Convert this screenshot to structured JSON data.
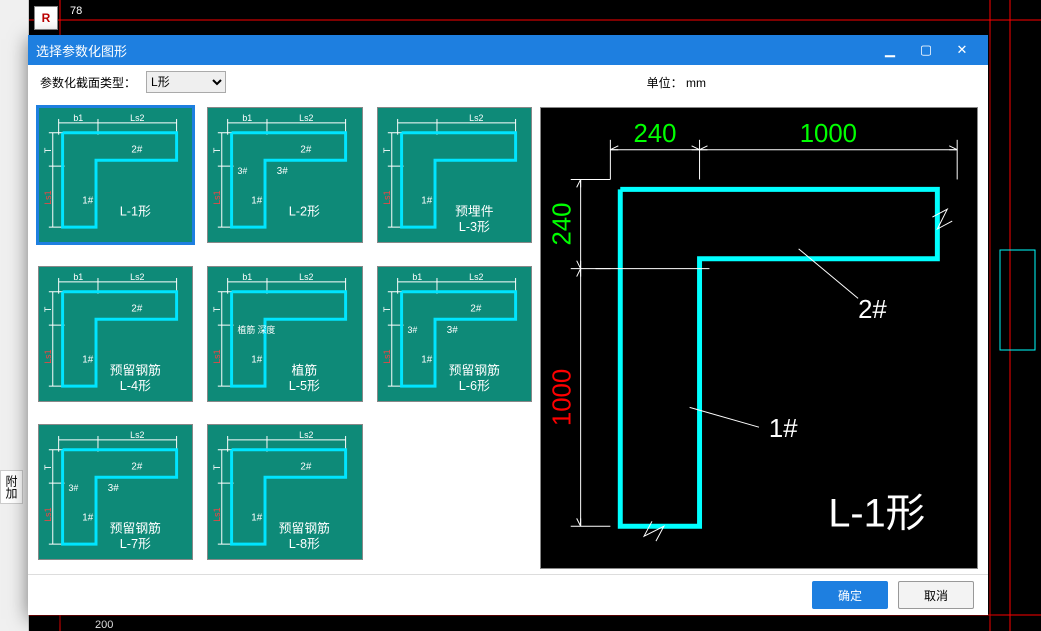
{
  "window": {
    "title": "选择参数化图形",
    "minimize_glyph": "▁",
    "maximize_glyph": "▢",
    "close_glyph": "✕"
  },
  "toolbar": {
    "type_label": "参数化截面类型：",
    "type_value": "L形",
    "unit_label": "单位：",
    "unit_value": "mm"
  },
  "thumbs": {
    "style": {
      "bg": "#0e8a78",
      "outline_cyan": "#00e5ff",
      "text": "#ffffff",
      "red": "#ff4040"
    },
    "items": [
      {
        "name": "L-1形",
        "ls2": "Ls2",
        "b1": "b1",
        "ls1": "Ls1",
        "t": "T",
        "mark1": "1#",
        "mark2": "2#"
      },
      {
        "name": "L-2形",
        "ls2": "Ls2",
        "b1": "b1",
        "ls1": "Ls1",
        "t": "T",
        "mark1": "1#",
        "mark2": "2#",
        "extra": "3#"
      },
      {
        "name": "预埋件\nL-3形",
        "ls2": "Ls2",
        "b1": "",
        "ls1": "Ls1",
        "t": "T",
        "mark1": "1#",
        "mark2": ""
      },
      {
        "name": "预留钢筋\nL-4形",
        "ls2": "Ls2",
        "b1": "b1",
        "ls1": "Ls1",
        "t": "T",
        "mark1": "1#",
        "mark2": "2#"
      },
      {
        "name": "植筋\nL-5形",
        "ls2": "Ls2",
        "b1": "b1",
        "ls1": "Ls1",
        "t": "T",
        "mark1": "1#",
        "mark2": "",
        "extra": "植筋\n深度"
      },
      {
        "name": "预留钢筋\nL-6形",
        "ls2": "Ls2",
        "b1": "b1",
        "ls1": "Ls1",
        "t": "T",
        "mark1": "1#",
        "mark2": "2#",
        "extra": "3#"
      },
      {
        "name": "预留钢筋\nL-7形",
        "ls2": "Ls2",
        "b1": "",
        "ls1": "Ls1",
        "t": "T",
        "mark1": "1#",
        "mark2": "2#",
        "extra": "3#"
      },
      {
        "name": "预留钢筋\nL-8形",
        "ls2": "Ls2",
        "b1": "",
        "ls1": "Ls1",
        "t": "T",
        "mark1": "1#",
        "mark2": "2#"
      }
    ]
  },
  "preview": {
    "colors": {
      "bg": "#000000",
      "shape": "#00ffff",
      "dim": "#ffffff",
      "green": "#00ff00",
      "red": "#ff0000",
      "title": "#ffffff"
    },
    "dim_h1": "240",
    "dim_h2": "1000",
    "dim_v1": "240",
    "dim_v2": "1000",
    "mark1": "1#",
    "mark2": "2#",
    "title": "L-1形"
  },
  "buttons": {
    "ok": "确定",
    "cancel": "取消"
  },
  "bg": {
    "corner_label": "R",
    "side_tab": "附加"
  }
}
